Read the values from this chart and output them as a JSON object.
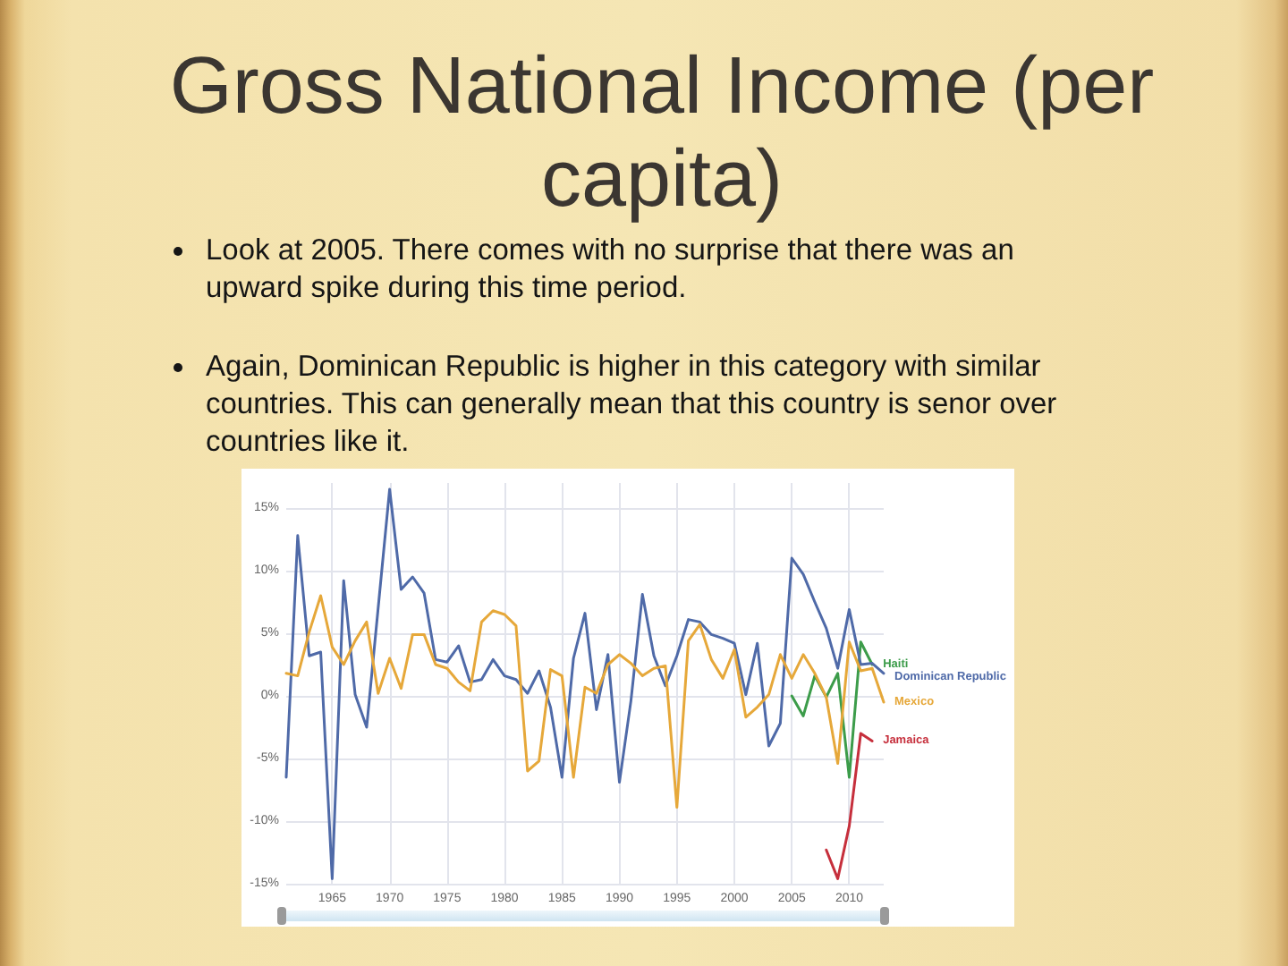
{
  "chart_data": {
    "type": "line",
    "title": "Gross National Income (per capita)",
    "annotations": [
      "Look at 2005. There comes with no surprise that there was an upward spike during this time period.",
      "Again, Dominican Republic is higher in this category with similar countries. This can generally mean that this country is senor over countries like it."
    ],
    "xlim": [
      1961,
      2013
    ],
    "xticks": [
      1965,
      1970,
      1975,
      1980,
      1985,
      1990,
      1995,
      2000,
      2005,
      2010
    ],
    "ylim": [
      -15,
      17
    ],
    "yticks": [
      {
        "value": -15,
        "label": "-15%"
      },
      {
        "value": -10,
        "label": "-10%"
      },
      {
        "value": -5,
        "label": "-5%"
      },
      {
        "value": 0,
        "label": "0%"
      },
      {
        "value": 5,
        "label": "5%"
      },
      {
        "value": 10,
        "label": "10%"
      },
      {
        "value": 15,
        "label": "15%"
      }
    ],
    "grid": true,
    "marker": "none",
    "series": [
      {
        "name": "Haiti",
        "color": "#3c9c4a",
        "x": [
          2005,
          2006,
          2007,
          2008,
          2009,
          2010,
          2011,
          2012
        ],
        "values": [
          0.0,
          -1.6,
          1.6,
          -0.1,
          1.8,
          -6.5,
          4.3,
          2.5
        ]
      },
      {
        "name": "Dominican Republic",
        "color": "#4f6aa8",
        "x": [
          1961,
          1962,
          1963,
          1964,
          1965,
          1966,
          1967,
          1968,
          1969,
          1970,
          1971,
          1972,
          1973,
          1974,
          1975,
          1976,
          1977,
          1978,
          1979,
          1980,
          1981,
          1982,
          1983,
          1984,
          1985,
          1986,
          1987,
          1988,
          1989,
          1990,
          1991,
          1992,
          1993,
          1994,
          1995,
          1996,
          1997,
          1998,
          1999,
          2000,
          2001,
          2002,
          2003,
          2004,
          2005,
          2006,
          2007,
          2008,
          2009,
          2010,
          2011,
          2012,
          2013
        ],
        "values": [
          -6.5,
          12.8,
          3.2,
          3.5,
          -14.6,
          9.2,
          0.1,
          -2.5,
          7,
          16.5,
          8.5,
          9.5,
          8.2,
          2.9,
          2.7,
          4.0,
          1.1,
          1.3,
          2.9,
          1.6,
          1.3,
          0.2,
          2.0,
          -0.9,
          -6.5,
          3.0,
          6.6,
          -1.1,
          3.3,
          -6.9,
          -0.4,
          8.1,
          3.2,
          0.8,
          3.2,
          6.1,
          5.9,
          4.9,
          4.6,
          4.2,
          0.1,
          4.2,
          -4.0,
          -2.2,
          11.0,
          9.7,
          7.5,
          5.4,
          2.2,
          6.9,
          2.5,
          2.6,
          1.8
        ]
      },
      {
        "name": "Mexico",
        "color": "#e6a83a",
        "x": [
          1961,
          1962,
          1963,
          1964,
          1965,
          1966,
          1967,
          1968,
          1969,
          1970,
          1971,
          1972,
          1973,
          1974,
          1975,
          1976,
          1977,
          1978,
          1979,
          1980,
          1981,
          1982,
          1983,
          1984,
          1985,
          1986,
          1987,
          1988,
          1989,
          1990,
          1991,
          1992,
          1993,
          1994,
          1995,
          1996,
          1997,
          1998,
          1999,
          2000,
          2001,
          2002,
          2003,
          2004,
          2005,
          2006,
          2007,
          2008,
          2009,
          2010,
          2011,
          2012,
          2013
        ],
        "values": [
          1.8,
          1.6,
          5.1,
          8.0,
          3.9,
          2.5,
          4.4,
          5.9,
          0.2,
          3.0,
          0.6,
          4.9,
          4.9,
          2.5,
          2.2,
          1.1,
          0.4,
          5.9,
          6.8,
          6.5,
          5.6,
          -6.0,
          -5.2,
          2.1,
          1.6,
          -6.5,
          0.7,
          0.2,
          2.5,
          3.3,
          2.6,
          1.6,
          2.2,
          2.4,
          -8.9,
          4.4,
          5.7,
          2.9,
          1.4,
          3.7,
          -1.7,
          -0.9,
          0.1,
          3.3,
          1.4,
          3.3,
          1.8,
          -0.1,
          -5.4,
          4.3,
          2.0,
          2.2,
          -0.5
        ]
      },
      {
        "name": "Jamaica",
        "color": "#c62f3c",
        "x": [
          2008,
          2009,
          2010,
          2011,
          2012
        ],
        "values": [
          -12.3,
          -14.6,
          -10.4,
          -3.0,
          -3.6
        ]
      }
    ]
  }
}
